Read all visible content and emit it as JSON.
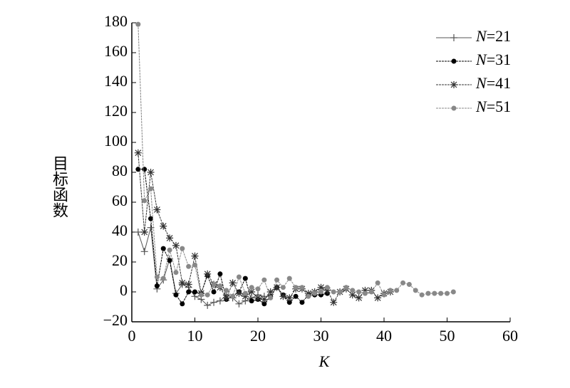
{
  "chart_data": {
    "type": "line",
    "xlabel": "K",
    "ylabel": "目标函数",
    "xlim": [
      0,
      60
    ],
    "xticks": [
      0,
      10,
      20,
      30,
      40,
      50,
      60
    ],
    "ylim": [
      -20,
      180
    ],
    "yticks": [
      {
        "value": -20,
        "label": "−20"
      },
      0,
      20,
      40,
      60,
      80,
      100,
      120,
      140,
      160,
      180
    ],
    "legend": "upper right",
    "series": [
      {
        "name": "N=21",
        "color": "#555555",
        "marker": "plus",
        "x": [
          1,
          2,
          3,
          4,
          5,
          6,
          7,
          8,
          9,
          10,
          11,
          12,
          13,
          14,
          15,
          16,
          17,
          18,
          19,
          20,
          21
        ],
        "values": [
          40,
          27,
          43,
          2,
          8,
          22,
          -1,
          5,
          3,
          -3,
          -5,
          -9,
          -7,
          -6,
          -2,
          -4,
          -8,
          -6,
          -4,
          -2,
          -3
        ]
      },
      {
        "name": "N=31",
        "color": "#000000",
        "marker": "dot",
        "x": [
          1,
          2,
          3,
          4,
          5,
          6,
          7,
          8,
          9,
          10,
          11,
          12,
          13,
          14,
          15,
          16,
          17,
          18,
          19,
          20,
          21,
          22,
          23,
          24,
          25,
          26,
          27,
          28,
          29,
          30,
          31
        ],
        "values": [
          82,
          82,
          49,
          4,
          29,
          21,
          -2,
          -8,
          0,
          0,
          -1,
          11,
          0,
          12,
          -5,
          -3,
          0,
          9,
          -6,
          -5,
          -8,
          -3,
          3,
          -2,
          -7,
          -3,
          -7,
          -2,
          -2,
          -2,
          -1
        ]
      },
      {
        "name": "N=41",
        "color": "#333333",
        "marker": "star",
        "x": [
          1,
          2,
          3,
          4,
          5,
          6,
          7,
          8,
          9,
          10,
          11,
          12,
          13,
          14,
          15,
          16,
          17,
          18,
          19,
          20,
          21,
          22,
          23,
          24,
          25,
          26,
          27,
          28,
          29,
          30,
          31,
          32,
          33,
          34,
          35,
          36,
          37,
          38,
          39,
          40,
          41
        ],
        "values": [
          93,
          40,
          80,
          55,
          44,
          36,
          31,
          6,
          5,
          24,
          -1,
          12,
          5,
          3,
          -4,
          6,
          -1,
          -3,
          0,
          -4,
          -5,
          0,
          3,
          -3,
          -4,
          2,
          2,
          -1,
          0,
          3,
          1,
          -7,
          0,
          2,
          -2,
          -4,
          1,
          1,
          -4,
          -1,
          0
        ]
      },
      {
        "name": "N=51",
        "color": "#888888",
        "marker": "dot",
        "x": [
          1,
          2,
          3,
          4,
          5,
          6,
          7,
          8,
          9,
          10,
          11,
          12,
          13,
          14,
          15,
          16,
          17,
          18,
          19,
          20,
          21,
          22,
          23,
          24,
          25,
          26,
          27,
          28,
          29,
          30,
          31,
          32,
          33,
          34,
          35,
          36,
          37,
          38,
          39,
          40,
          41,
          42,
          43,
          44,
          45,
          46,
          47,
          48,
          49,
          50,
          51
        ],
        "values": [
          179,
          61,
          69,
          10,
          9,
          28,
          13,
          29,
          17,
          18,
          -2,
          -2,
          5,
          4,
          1,
          -3,
          10,
          -1,
          3,
          2,
          8,
          -4,
          8,
          3,
          9,
          3,
          3,
          -3,
          -1,
          0,
          3,
          0,
          0,
          3,
          1,
          0,
          -1,
          0,
          6,
          -2,
          1,
          1,
          6,
          5,
          1,
          -2,
          -1,
          -1,
          -1,
          -1,
          0
        ]
      }
    ]
  }
}
